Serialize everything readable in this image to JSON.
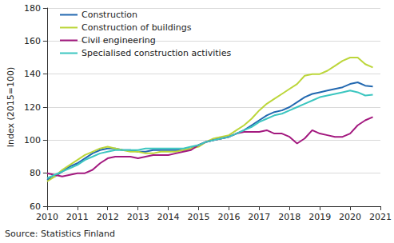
{
  "chart_data": {
    "type": "line",
    "y_label": "Index (2015=100)",
    "source": "Source: Statistics Finland",
    "x": [
      2010,
      2010.25,
      2010.5,
      2010.75,
      2011,
      2011.25,
      2011.5,
      2011.75,
      2012,
      2012.25,
      2012.5,
      2012.75,
      2013,
      2013.25,
      2013.5,
      2013.75,
      2014,
      2014.25,
      2014.5,
      2014.75,
      2015,
      2015.25,
      2015.5,
      2015.75,
      2016,
      2016.25,
      2016.5,
      2016.75,
      2017,
      2017.25,
      2017.5,
      2017.75,
      2018,
      2018.25,
      2018.5,
      2018.75,
      2019,
      2019.25,
      2019.5,
      2019.75,
      2020,
      2020.25,
      2020.5,
      2020.75
    ],
    "series": [
      {
        "name": "Construction",
        "color": "#2268b0",
        "values": [
          76,
          78,
          81,
          84,
          86,
          89,
          92,
          94,
          95,
          95,
          94,
          94,
          93,
          93,
          94,
          94,
          94,
          94,
          94,
          95,
          97,
          99,
          100,
          101,
          102,
          104,
          106,
          109,
          112,
          115,
          117,
          118,
          120,
          123,
          126,
          128,
          129,
          130,
          131,
          132,
          134,
          135,
          133,
          132.5
        ]
      },
      {
        "name": "Construction of buildings",
        "color": "#bcd63a",
        "values": [
          75,
          78,
          82,
          85,
          88,
          91,
          93,
          95,
          96,
          95,
          94,
          93,
          93,
          92,
          92,
          93,
          93,
          93,
          94,
          95,
          96,
          99,
          101,
          102,
          103,
          106,
          109,
          113,
          118,
          122,
          125,
          128,
          131,
          134,
          139,
          140,
          140,
          142,
          145,
          148,
          150,
          150,
          146,
          144
        ]
      },
      {
        "name": "Civil engineering",
        "color": "#a3197f",
        "values": [
          80,
          79,
          78,
          79,
          80,
          80,
          82,
          86,
          89,
          90,
          90,
          90,
          89,
          90,
          91,
          91,
          91,
          92,
          93,
          94,
          97,
          99,
          100,
          101,
          102,
          104,
          105,
          105,
          105,
          106,
          104,
          104,
          102,
          98,
          101,
          106,
          104,
          103,
          102,
          102,
          104,
          109,
          112,
          114
        ]
      },
      {
        "name": "Specialised construction activities",
        "color": "#3cc6c0",
        "values": [
          77,
          79,
          81,
          83,
          85,
          88,
          90,
          92,
          93,
          94,
          94,
          94,
          94,
          95,
          95,
          95,
          95,
          95,
          95,
          96,
          97,
          99,
          100,
          101,
          102,
          104,
          106,
          108,
          111,
          113,
          115,
          116,
          118,
          120,
          122,
          124,
          126,
          127,
          128,
          129,
          130,
          129,
          127,
          127.5
        ]
      }
    ],
    "xlim": [
      2010,
      2021
    ],
    "xticks": [
      2010,
      2011,
      2012,
      2013,
      2014,
      2015,
      2016,
      2017,
      2018,
      2019,
      2020,
      2021
    ],
    "ylim": [
      60,
      180
    ],
    "yticks": [
      60,
      80,
      100,
      120,
      140,
      160,
      180
    ],
    "grid": true,
    "legend": "top-left"
  }
}
